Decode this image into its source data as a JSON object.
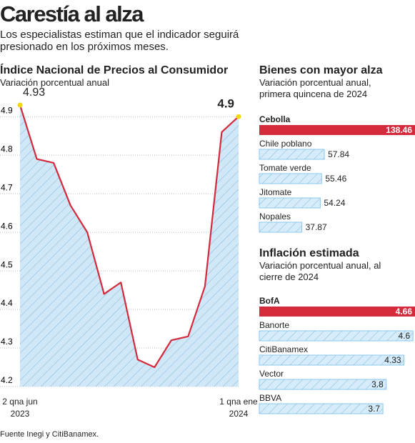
{
  "header": {
    "title": "Carestía al alza",
    "subtitle": "Los especialistas estiman que el indicador seguirá presionado en los próximos meses."
  },
  "chart_data": [
    {
      "type": "line",
      "title": "Índice Nacional de Precios al Consumidor",
      "subtitle": "Variación porcentual anual",
      "categories": [
        "2 qna jun 2023",
        null,
        null,
        null,
        null,
        null,
        null,
        null,
        null,
        null,
        null,
        null,
        null,
        "1 qna ene 2024"
      ],
      "values": [
        4.93,
        4.79,
        4.78,
        4.67,
        4.6,
        4.44,
        4.47,
        4.27,
        4.25,
        4.32,
        4.33,
        4.46,
        4.86,
        4.9
      ],
      "color": "#d42a3c",
      "fill": "#cfe7f7",
      "marker_color": "#f3d80f",
      "ylim": [
        4.2,
        4.93
      ],
      "yticks": [
        4.2,
        4.3,
        4.4,
        4.5,
        4.6,
        4.7,
        4.8,
        4.9
      ],
      "grid": true
    },
    {
      "type": "hbar",
      "title": "Bienes con mayor alza",
      "subtitle": "Variación porcentual anual, primera quincena de 2024",
      "categories": [
        "Cebolla",
        "Chile poblano",
        "Tomate verde",
        "Jitomate",
        "Nopales"
      ],
      "values": [
        138.46,
        57.84,
        55.46,
        54.24,
        37.87
      ],
      "colors": [
        "#d42a3c",
        "#8cc8ee",
        "#8cc8ee",
        "#8cc8ee",
        "#8cc8ee"
      ],
      "xlim": [
        0,
        138.46
      ],
      "label_position": "outside"
    },
    {
      "type": "hbar",
      "title": "Inflación estimada",
      "subtitle": "Variación porcentual anual, al cierre de 2024",
      "categories": [
        "BofA",
        "Banorte",
        "CitiBanamex",
        "Vector",
        "BBVA"
      ],
      "values": [
        4.66,
        4.6,
        4.33,
        3.8,
        3.7
      ],
      "colors": [
        "#d42a3c",
        "#8cc8ee",
        "#8cc8ee",
        "#8cc8ee",
        "#8cc8ee"
      ],
      "xlim": [
        0,
        4.66
      ],
      "label_position": "inside"
    }
  ],
  "source": "Fuente Inegi y CitiBanamex."
}
